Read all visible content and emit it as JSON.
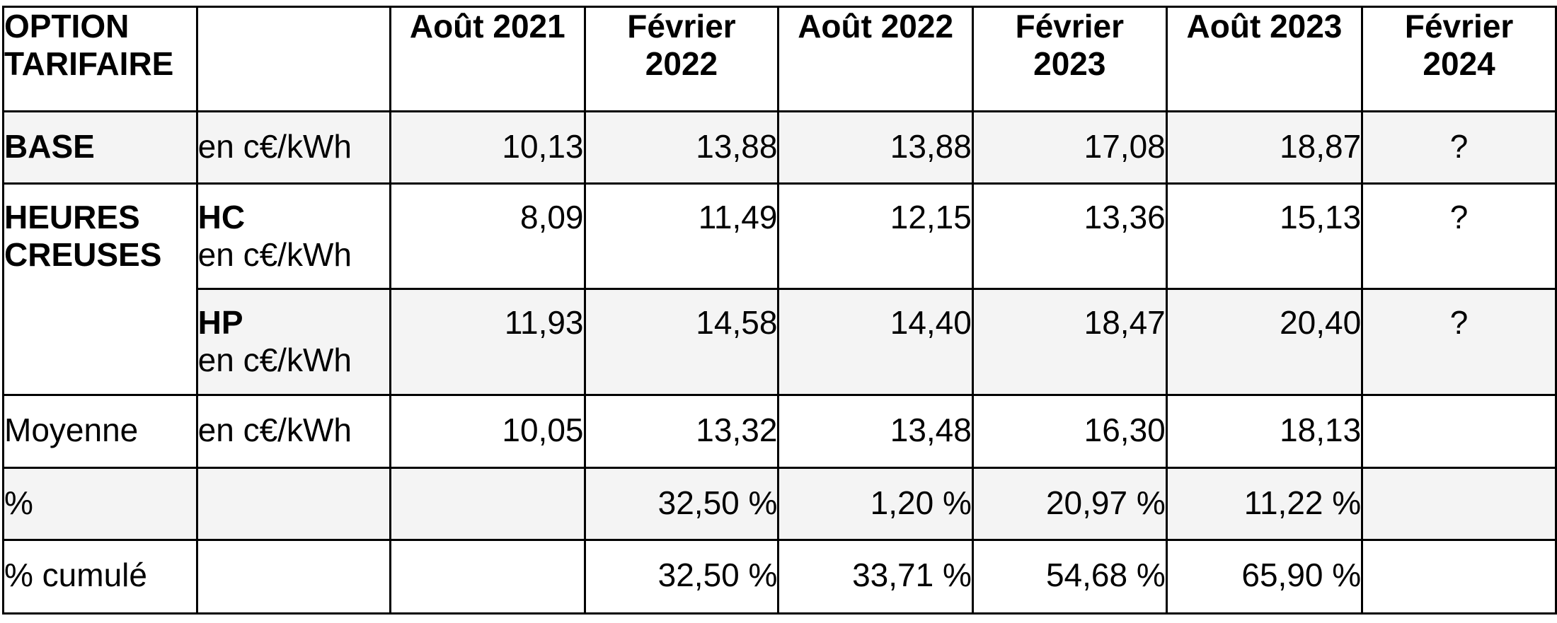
{
  "table": {
    "header": {
      "option": [
        "OPTION",
        "TARIFAIRE"
      ],
      "unit_col": "",
      "periods": [
        [
          "Août 2021"
        ],
        [
          "Février",
          "2022"
        ],
        [
          "Août 2022"
        ],
        [
          "Février",
          "2023"
        ],
        [
          "Août 2023"
        ],
        [
          "Février",
          "2024"
        ]
      ]
    },
    "rows": {
      "base": {
        "label": "BASE",
        "unit": "en c€/kWh",
        "values": [
          "10,13",
          "13,88",
          "13,88",
          "17,08",
          "18,87",
          "?"
        ]
      },
      "heures_creuses": {
        "label": [
          "HEURES",
          "CREUSES"
        ],
        "hc": {
          "label": "HC",
          "unit": "en c€/kWh",
          "values": [
            "8,09",
            "11,49",
            "12,15",
            "13,36",
            "15,13",
            "?"
          ]
        },
        "hp": {
          "label": "HP",
          "unit": "en c€/kWh",
          "values": [
            "11,93",
            "14,58",
            "14,40",
            "18,47",
            "20,40",
            "?"
          ]
        }
      },
      "moyenne": {
        "label": "Moyenne",
        "unit": "en c€/kWh",
        "values": [
          "10,05",
          "13,32",
          "13,48",
          "16,30",
          "18,13",
          ""
        ]
      },
      "pourcentage": {
        "label": "%",
        "unit": "",
        "values": [
          "",
          "32,50 %",
          "1,20 %",
          "20,97 %",
          "11,22 %",
          ""
        ]
      },
      "pourcentage_cumule": {
        "label": "% cumulé",
        "unit": "",
        "values": [
          "",
          "32,50 %",
          "33,71 %",
          "54,68 %",
          "65,90 %",
          ""
        ]
      }
    }
  }
}
